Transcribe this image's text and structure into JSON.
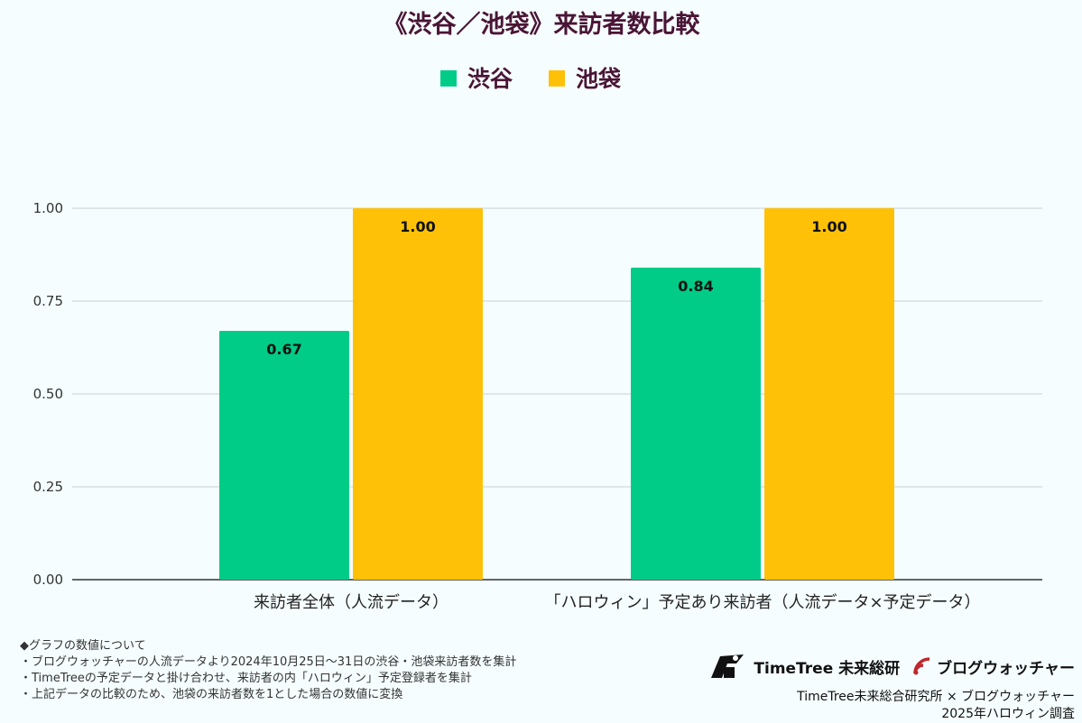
{
  "chart_data": {
    "type": "bar",
    "title": "《渋谷／池袋》来訪者数比較",
    "categories": [
      "来訪者全体（人流データ）",
      "「ハロウィン」予定あり来訪者（人流データ×予定データ）"
    ],
    "series": [
      {
        "name": "渋谷",
        "color": "#00cc88",
        "values": [
          0.67,
          0.84
        ]
      },
      {
        "name": "池袋",
        "color": "#ffc107",
        "values": [
          1.0,
          1.0
        ]
      }
    ],
    "data_labels": [
      [
        "0.67",
        "0.84"
      ],
      [
        "1.00",
        "1.00"
      ]
    ],
    "ylim": [
      0,
      1
    ],
    "yticks": [
      0,
      0.25,
      0.5,
      0.75,
      1
    ],
    "ytick_labels": [
      "0.00",
      "0.25",
      "0.50",
      "0.75",
      "1.00"
    ],
    "grid": true,
    "legend": "top-center"
  },
  "notes": {
    "heading": "◆グラフの数値について",
    "lines": [
      "・ブログウォッチャーの人流データより2024年10月25日～31日の渋谷・池袋来訪者数を集計",
      "・TimeTreeの予定データと掛け合わせ、来訪者の内「ハロウィン」予定登録者を集計",
      "・上記データの比較のため、池袋の来訪者数を1とした場合の数値に変換"
    ]
  },
  "brand": {
    "logo1": "TimeTree 未来総研",
    "logo2": "ブログウォッチャー",
    "credit": "TimeTree未来総合研究所 × ブログウォッチャー",
    "survey": "2025年ハロウィン調査"
  }
}
